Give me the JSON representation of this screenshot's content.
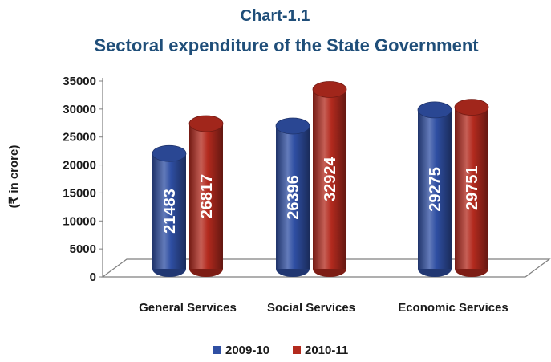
{
  "chart_data": {
    "type": "bar",
    "title": "Chart-1.1",
    "subtitle": "Sectoral expenditure of the State Government",
    "ylabel": "(₹ in crore)",
    "xlabel": "",
    "categories": [
      "General Services",
      "Social Services",
      "Economic Services"
    ],
    "series": [
      {
        "name": "2009-10",
        "color": "#2f4fa3",
        "values": [
          21483,
          26396,
          29275
        ]
      },
      {
        "name": "2010-11",
        "color": "#b32a1e",
        "values": [
          26817,
          32924,
          29751
        ]
      }
    ],
    "ylim": [
      0,
      35000
    ],
    "yticks": [
      "0",
      "5000",
      "10000",
      "15000",
      "20000",
      "25000",
      "30000",
      "35000"
    ],
    "grid": false,
    "legend_position": "bottom",
    "style": "3d-cylinder"
  }
}
